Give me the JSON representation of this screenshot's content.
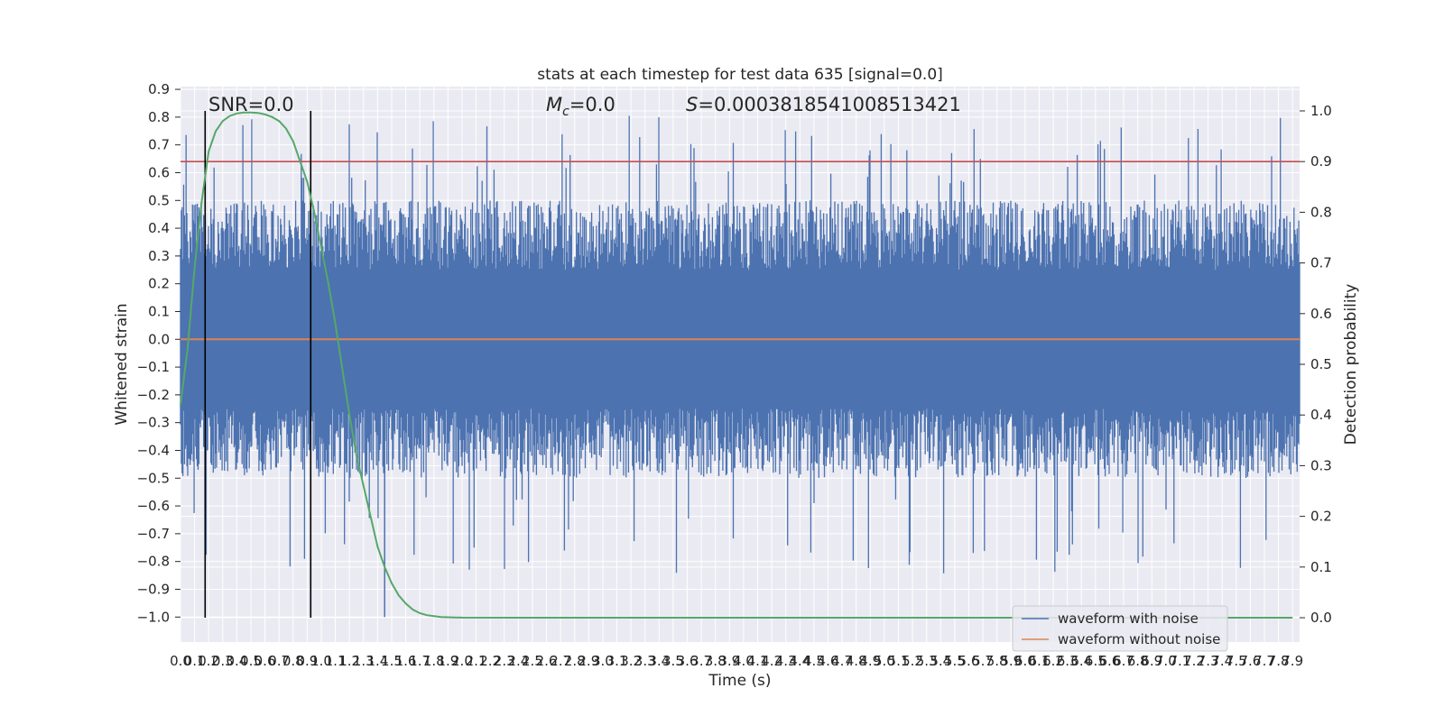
{
  "chart_data": {
    "type": "line",
    "title": "stats at each timestep for test data 635 [signal=0.0]",
    "xlabel": "Time (s)",
    "ylabel": "Whitened strain",
    "y2label": "Detection probability",
    "xlim": [
      0.0,
      7.95
    ],
    "ylim": [
      -1.09,
      0.91
    ],
    "y2lim": [
      -0.048,
      1.048
    ],
    "x_ticks": [
      "0.0",
      "0.1",
      "0.2",
      "0.3",
      "0.4",
      "0.5",
      "0.6",
      "0.7",
      "0.8",
      "0.9",
      "1.0",
      "1.1",
      "1.2",
      "1.3",
      "1.4",
      "1.5",
      "1.6",
      "1.7",
      "1.8",
      "1.9",
      "2.0",
      "2.1",
      "2.2",
      "2.3",
      "2.4",
      "2.5",
      "2.6",
      "2.7",
      "2.8",
      "2.9",
      "3.0",
      "3.1",
      "3.2",
      "3.3",
      "3.4",
      "3.5",
      "3.6",
      "3.7",
      "3.8",
      "3.9",
      "4.0",
      "4.1",
      "4.2",
      "4.3",
      "4.4",
      "4.5",
      "4.6",
      "4.7",
      "4.8",
      "4.9",
      "5.0",
      "5.1",
      "5.2",
      "5.3",
      "5.4",
      "5.5",
      "5.6",
      "5.7",
      "5.8",
      "5.9",
      "6.0",
      "6.1",
      "6.2",
      "6.3",
      "6.4",
      "6.5",
      "6.6",
      "6.7",
      "6.8",
      "6.9",
      "7.0",
      "7.1",
      "7.2",
      "7.3",
      "7.4",
      "7.5",
      "7.6",
      "7.7",
      "7.8",
      "7.9"
    ],
    "y_ticks": [
      "0.9",
      "0.8",
      "0.7",
      "0.6",
      "0.5",
      "0.4",
      "0.3",
      "0.2",
      "0.1",
      "0.0",
      "−0.1",
      "−0.2",
      "−0.3",
      "−0.4",
      "−0.5",
      "−0.6",
      "−0.7",
      "−0.8",
      "−0.9",
      "−1.0"
    ],
    "y2_ticks": [
      "1.0",
      "0.9",
      "0.8",
      "0.7",
      "0.6",
      "0.5",
      "0.4",
      "0.3",
      "0.2",
      "0.1",
      "0.0"
    ],
    "annotations": {
      "snr": "SNR=0.0",
      "mc_symbol": "M",
      "mc_sub": "c",
      "mc_value": "=0.0",
      "s_symbol": "S",
      "s_value": "=0.0003818541008513421"
    },
    "series": [
      {
        "name": "waveform with noise",
        "color": "#4c72b0",
        "axis": "left",
        "envelope": {
          "typical_high": 0.45,
          "typical_low": -0.45,
          "peak_high": 0.81,
          "peak_low": -1.0
        }
      },
      {
        "name": "waveform without noise",
        "color": "#dd8452",
        "axis": "left",
        "y_constant": 0.0
      },
      {
        "color": "#55a868",
        "axis": "right",
        "x": [
          0.0,
          0.05,
          0.1,
          0.15,
          0.2,
          0.25,
          0.3,
          0.35,
          0.4,
          0.45,
          0.5,
          0.55,
          0.6,
          0.65,
          0.7,
          0.75,
          0.8,
          0.85,
          0.9,
          0.95,
          1.0,
          1.05,
          1.1,
          1.15,
          1.2,
          1.25,
          1.3,
          1.35,
          1.4,
          1.45,
          1.5,
          1.55,
          1.6,
          1.65,
          1.7,
          1.75,
          1.8,
          1.85,
          1.9,
          1.95,
          2.0,
          2.5,
          3.0,
          4.0,
          5.0,
          6.0,
          7.0,
          7.9
        ],
        "y": [
          0.42,
          0.53,
          0.69,
          0.82,
          0.92,
          0.96,
          0.98,
          0.99,
          0.995,
          0.997,
          0.997,
          0.996,
          0.993,
          0.988,
          0.98,
          0.965,
          0.94,
          0.9,
          0.86,
          0.8,
          0.73,
          0.66,
          0.58,
          0.49,
          0.4,
          0.32,
          0.26,
          0.2,
          0.14,
          0.1,
          0.068,
          0.044,
          0.028,
          0.016,
          0.009,
          0.005,
          0.003,
          0.0015,
          0.001,
          0.0005,
          0.0003,
          0.0,
          0.0,
          0.0,
          0.0,
          0.0,
          0.0,
          0.0
        ]
      },
      {
        "color": "#c44e52",
        "axis": "right",
        "y_constant": 0.9
      }
    ],
    "vlines": [
      0.175,
      0.925
    ],
    "grid": true,
    "legend_position": "lower right"
  }
}
